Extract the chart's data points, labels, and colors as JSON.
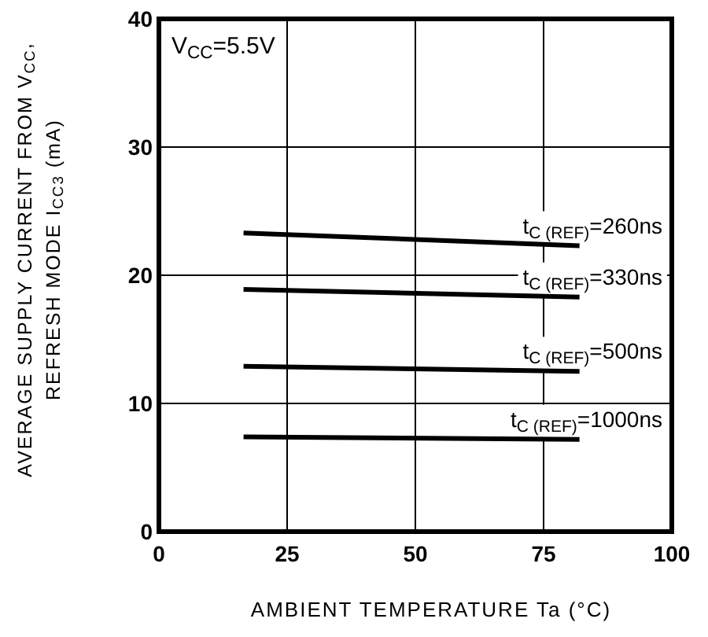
{
  "chart_data": {
    "type": "line",
    "xlabel": "AMBIENT TEMPERATURE Ta (°C)",
    "ylabel": "AVERAGE SUPPLY CURRENT FROM V$_{CC}$,\nREFRESH MODE I$_{CC3}$ (mA)",
    "annotations": [
      "V$_{CC}$=5.5V"
    ],
    "x": [
      16.5,
      82
    ],
    "xlim": [
      0,
      100
    ],
    "xticks": [
      0,
      25,
      50,
      75,
      100
    ],
    "ylim": [
      0,
      40
    ],
    "yticks": [
      0,
      10,
      20,
      30,
      40
    ],
    "grid": true,
    "marker": "none",
    "line_style": "solid",
    "series": [
      {
        "name": "t$_{C (REF)}$=260ns",
        "color": "#000000",
        "values": [
          23.3,
          22.3
        ]
      },
      {
        "name": "t$_{C (REF)}$=330ns",
        "color": "#000000",
        "values": [
          18.9,
          18.3
        ]
      },
      {
        "name": "t$_{C (REF)}$=500ns",
        "color": "#000000",
        "values": [
          12.9,
          12.5
        ]
      },
      {
        "name": "t$_{C (REF)}$=1000ns",
        "color": "#000000",
        "values": [
          7.4,
          7.2
        ]
      }
    ]
  }
}
